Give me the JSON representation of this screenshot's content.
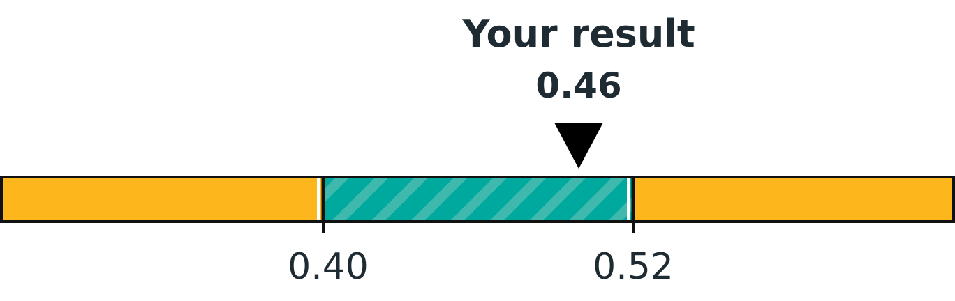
{
  "chart_data": {
    "type": "range-indicator",
    "marker_label": "Your result",
    "marker_value": 0.46,
    "marker_value_text": "0.46",
    "range": [
      0.4,
      0.52
    ],
    "range_tick_labels": [
      "0.40",
      "0.52"
    ],
    "segments": [
      {
        "label": "below",
        "color": "#fdb71c"
      },
      {
        "label": "in-range",
        "color": "#00a99d",
        "hatched": true
      },
      {
        "label": "above",
        "color": "#fdb71c"
      }
    ]
  },
  "colors": {
    "outside": "#fdb71c",
    "inside": "#00a99d",
    "inside_stripe": "#3fb9ad",
    "outline": "#111111",
    "text": "#1f2b33",
    "marker": "#000000"
  }
}
